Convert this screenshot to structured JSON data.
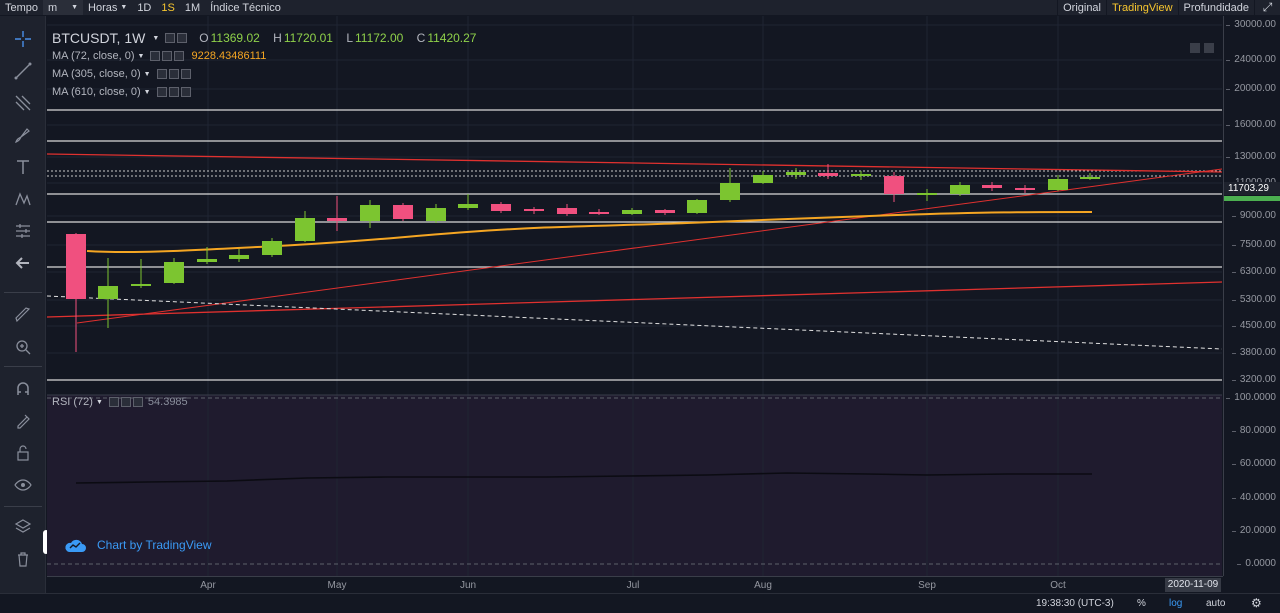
{
  "toolbar": {
    "tempo_label": "Tempo",
    "interval_select": "m",
    "hours_label": "Horas",
    "intervals": [
      "1D",
      "1S",
      "1M"
    ],
    "active_interval": "1S",
    "indicators_label": "Índice Técnico",
    "views": [
      "Original",
      "TradingView",
      "Profundidade"
    ],
    "active_view": "TradingView"
  },
  "left_tools": [
    "crosshair-icon",
    "trend-line-icon",
    "fib-tool-icon",
    "brush-icon",
    "text-icon",
    "pattern-icon",
    "prediction-icon",
    "back-arrow-icon",
    "ruler-icon",
    "zoom-in-icon",
    "magnet-icon",
    "lock-drawing-icon",
    "unlock-icon",
    "eye-icon",
    "layers-icon",
    "trash-icon"
  ],
  "legend": {
    "symbol": "BTCUSDT, 1W",
    "o_label": "O",
    "o": "11369.02",
    "h_label": "H",
    "h": "11720.01",
    "l_label": "L",
    "l": "11172.00",
    "c_label": "C",
    "c": "11420.27",
    "ma1": "MA (72, close, 0)",
    "ma1_value": "9228.43486111",
    "ma2": "MA (305, close, 0)",
    "ma3": "MA (610, close, 0)",
    "rsi": "RSI (72)",
    "rsi_value": "54.3985"
  },
  "watermark": "Chart by TradingView",
  "price_scale": {
    "ticks": [
      "30000.00",
      "24000.00",
      "20000.00",
      "16000.00",
      "13000.00",
      "11000.00",
      "9000.00",
      "7500.00",
      "6300.00",
      "5300.00",
      "4500.00",
      "3800.00",
      "3200.00"
    ],
    "last_price": "11703.29",
    "rsi_ticks": [
      "100.0000",
      "80.0000",
      "60.0000",
      "40.0000",
      "20.0000",
      "0.0000"
    ]
  },
  "time_scale": {
    "labels": [
      "Apr",
      "May",
      "Jun",
      "Jul",
      "Aug",
      "Sep",
      "Oct"
    ],
    "cursor_date": "2020-11-09"
  },
  "status_bar": {
    "time": "19:38:30 (UTC-3)",
    "percent": "%",
    "log": "log",
    "auto": "auto"
  },
  "colors": {
    "up": "#7cc530",
    "down": "#f0507f",
    "ma72": "#f5a623",
    "trend": "#e0312f",
    "rsi_line": "#0b0b12"
  }
}
